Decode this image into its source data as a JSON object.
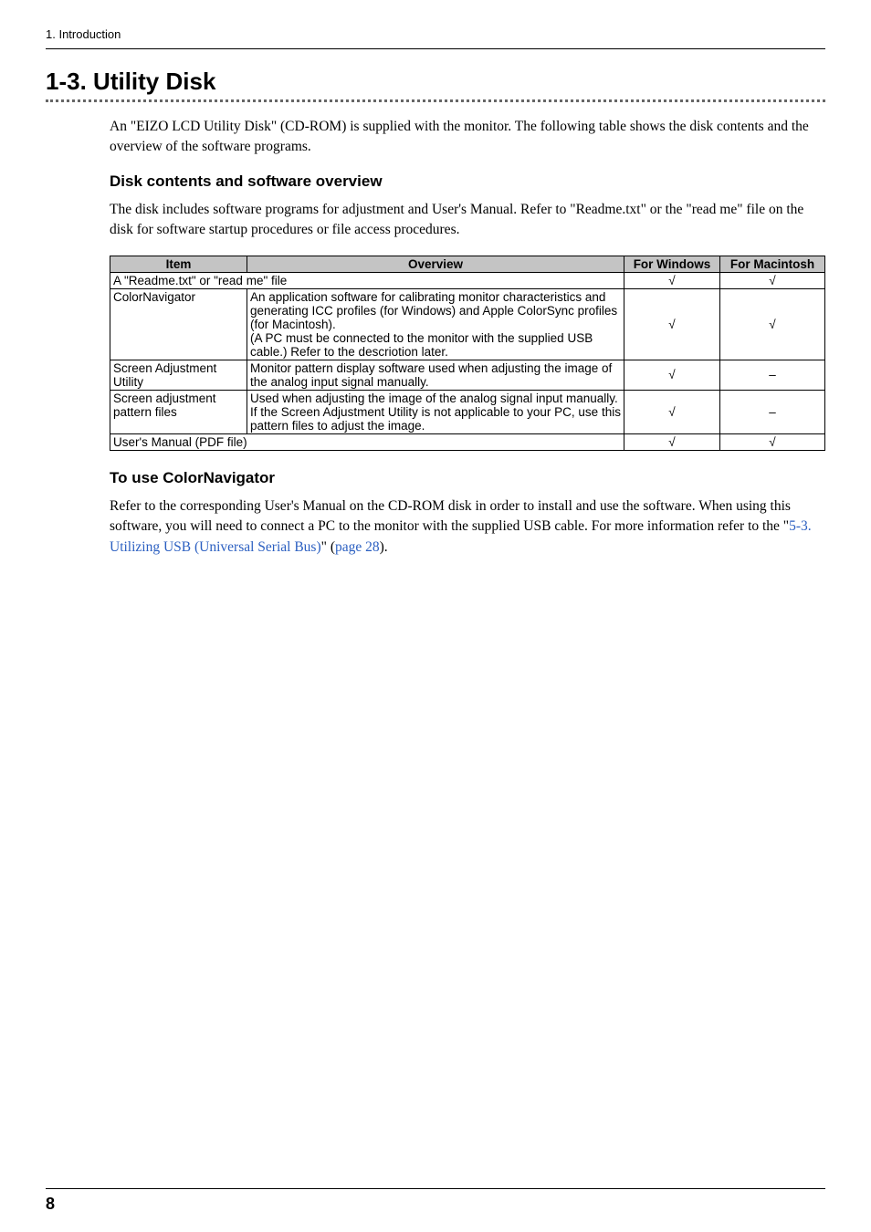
{
  "header": {
    "section": "1. Introduction"
  },
  "section": {
    "number": "1-3.",
    "title": "Utility Disk",
    "intro": "An \"EIZO LCD Utility Disk\" (CD-ROM) is supplied with the monitor. The following table shows the disk contents and the overview of the software programs."
  },
  "disk_contents": {
    "heading": "Disk contents and software overview",
    "intro": "The disk includes software programs for adjustment and User's Manual. Refer to \"Readme.txt\" or the \"read me\" file on the disk for software startup procedures or file access procedures.",
    "columns": {
      "item": "Item",
      "overview": "Overview",
      "windows": "For Windows",
      "macintosh": "For Macintosh"
    },
    "rows": [
      {
        "item": "A \"Readme.txt\" or \"read me\" file",
        "overview": "",
        "span": true,
        "windows": "√",
        "macintosh": "√"
      },
      {
        "item": "ColorNavigator",
        "overview": "An application software for calibrating monitor characteristics and generating ICC profiles (for Windows) and Apple ColorSync profiles (for Macintosh).\n(A PC must be connected to the monitor with the supplied USB cable.) Refer to the descriotion later.",
        "windows": "√",
        "macintosh": "√"
      },
      {
        "item": "Screen Adjustment Utility",
        "overview": "Monitor pattern display software used when adjusting the image of the analog input signal manually.",
        "windows": "√",
        "macintosh": "–"
      },
      {
        "item": "Screen adjustment pattern files",
        "overview": "Used when adjusting the image of the analog signal input manually. If the Screen Adjustment Utility is not applicable to your PC, use this pattern files to adjust the image.",
        "windows": "√",
        "macintosh": "–"
      },
      {
        "item": "User's Manual (PDF file)",
        "overview": "",
        "span": true,
        "windows": "√",
        "macintosh": "√"
      }
    ]
  },
  "colornav": {
    "heading": "To use ColorNavigator",
    "text_before": "Refer to the corresponding User's Manual on the CD-ROM disk in order to install and use the software. When using this software, you will need to connect a PC to the monitor with the supplied USB cable. For more information refer to the \"",
    "link1": "5-3. Utilizing USB (Universal Serial Bus)",
    "text_mid": "\" (",
    "link2": "page 28",
    "text_after": ")."
  },
  "footer": {
    "page": "8"
  }
}
